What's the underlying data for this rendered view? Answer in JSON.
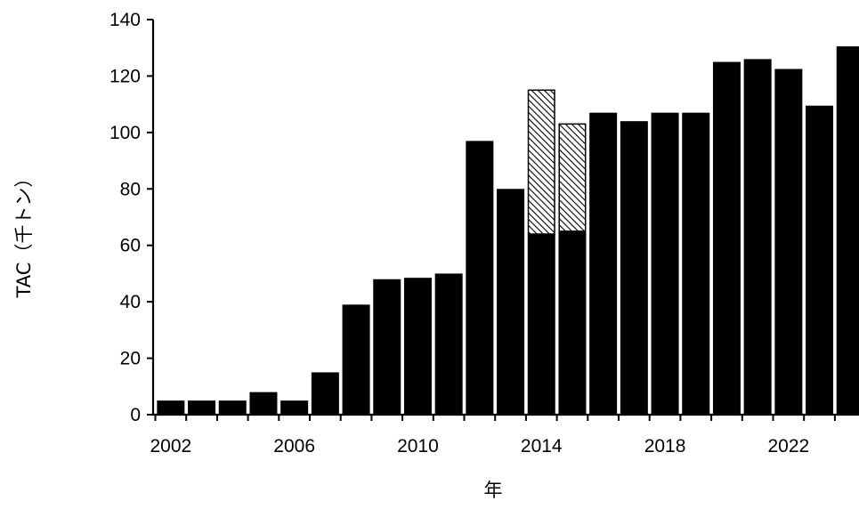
{
  "chart_data": {
    "type": "bar",
    "ylabel": "TAC（千トン）",
    "xlabel": "年",
    "ylim": [
      0,
      140
    ],
    "y_ticks": [
      "0",
      "20",
      "40",
      "60",
      "80",
      "100",
      "120",
      "140"
    ],
    "x_tick_labels": [
      "2002",
      "2006",
      "2010",
      "2014",
      "2018",
      "2022"
    ],
    "grid": false,
    "legend": "none",
    "categories": [
      "2002",
      "2003",
      "2004",
      "2005",
      "2006",
      "2007",
      "2008",
      "2009",
      "2010",
      "2011",
      "2012",
      "2013",
      "2014",
      "2015",
      "2016",
      "2017",
      "2018",
      "2019",
      "2020",
      "2021",
      "2022",
      "2023",
      "2024"
    ],
    "series": [
      {
        "fill": "solid-black",
        "values": [
          5,
          5,
          5,
          8,
          5,
          15,
          39,
          48,
          48.5,
          50,
          97,
          80,
          64,
          65,
          107,
          104,
          107,
          107,
          125,
          126,
          122.5,
          109.5,
          130.5
        ]
      },
      {
        "fill": "hatched",
        "values": [
          0,
          0,
          0,
          0,
          0,
          0,
          0,
          0,
          0,
          0,
          0,
          0,
          51,
          38,
          0,
          0,
          0,
          0,
          0,
          0,
          0,
          0,
          0
        ]
      }
    ],
    "colors": {
      "bar": "#000000",
      "hatch_line": "#000000",
      "hatch_bg": "#ffffff",
      "axis": "#000000"
    }
  }
}
